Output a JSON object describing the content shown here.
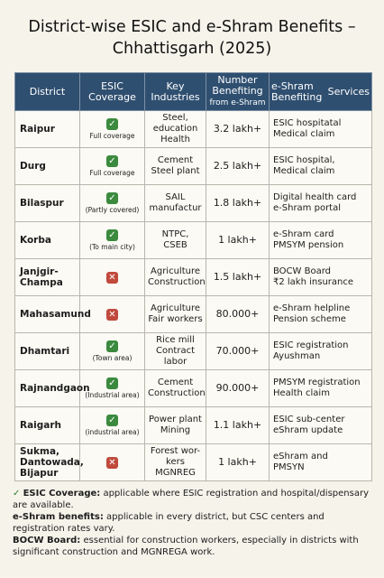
{
  "title_line1": "District-wise ESIC and e-Shram Benefits –",
  "title_line2": "Chhattisgarh (2025)",
  "headers": {
    "district": "District",
    "esic_line1": "ESIC",
    "esic_line2": "Coverage",
    "industries_line1": "Key",
    "industries_line2": "Industries",
    "number_line1": "Number",
    "number_line2": "Benefiting",
    "number_line3": "from e-Shram",
    "services_a_line1": "e-Shram",
    "services_a_line2": "Benefiting",
    "services_b": "Services"
  },
  "rows": [
    {
      "district": "Raipur",
      "esic": "yes",
      "coverage_note": "Full coverage",
      "ind1": "Steel,",
      "ind2": "education",
      "ind3": "Health",
      "number": "3.2 lakh+",
      "svc1": "ESIC hospitatal",
      "svc2": "Medical claim"
    },
    {
      "district": "Durg",
      "esic": "yes",
      "coverage_note": "Full coverage",
      "ind1": "Cement",
      "ind2": "Steel plant",
      "ind3": "",
      "number": "2.5 lakh+",
      "svc1": "ESIC hospital,",
      "svc2": "Medical claim"
    },
    {
      "district": "Bilaspur",
      "esic": "yes",
      "coverage_note": "(Partly covered)",
      "ind1": "SAIL",
      "ind2": "manufactur",
      "ind3": "",
      "number": "1.8 lakh+",
      "svc1": "Digital health card",
      "svc2": "e-Shram portal"
    },
    {
      "district": "Korba",
      "esic": "yes",
      "coverage_note": "(To main city)",
      "ind1": "NTPC,",
      "ind2": "CSEB",
      "ind3": "",
      "number": "1 lakh+",
      "svc1": "e-Shram card",
      "svc2": "PMSYM pension"
    },
    {
      "district": "Janjgir-Champa",
      "esic": "no",
      "coverage_note": "",
      "ind1": "Agriculture",
      "ind2": "Construction",
      "ind3": "",
      "number": "1.5 lakh+",
      "svc1": "BOCW Board",
      "svc2": "₹2 lakh insurance"
    },
    {
      "district": "Mahasamund",
      "esic": "no",
      "coverage_note": "",
      "ind1": "Agriculture",
      "ind2": "Fair workers",
      "ind3": "",
      "number": "80.000+",
      "svc1": "e-Shram helpline",
      "svc2": "Pension scheme"
    },
    {
      "district": "Dhamtari",
      "esic": "yes",
      "coverage_note": "(Town area)",
      "ind1": "Rice mill",
      "ind2": "Contract labor",
      "ind3": "",
      "number": "70.000+",
      "svc1": "ESIC registration",
      "svc2": "Ayushman"
    },
    {
      "district": "Rajnandgaon",
      "esic": "yes",
      "coverage_note": "(Industrial area)",
      "ind1": "Cement",
      "ind2": "Construction",
      "ind3": "",
      "number": "90.000+",
      "svc1": "PMSYM registration",
      "svc2": "Health claim"
    },
    {
      "district": "Raigarh",
      "esic": "yes",
      "coverage_note": "(industrial area)",
      "ind1": "Power plant",
      "ind2": "Mining",
      "ind3": "",
      "number": "1.1 lakh+",
      "svc1": "ESIC sub-center",
      "svc2": "eShram update"
    },
    {
      "district": "Sukma, Dantowada, Bijapur",
      "esic": "no",
      "coverage_note": "",
      "ind1": "Forest wor-",
      "ind2": "kers MGNREG",
      "ind3": "",
      "number": "1 lakh+",
      "svc1": "eShram and",
      "svc2": "PMSYN"
    }
  ],
  "notes": [
    {
      "label": "ESIC Coverage:",
      "text": " applicable where ESIC registration and hospital/dispensary are available."
    },
    {
      "label": "e-Shram benefits:",
      "text": " applicable in every district, but CSC centers and registration rates vary."
    },
    {
      "label": "BOCW Board:",
      "text": " essential for construction workers, especially in districts with significant construction and MGNREGA work."
    }
  ],
  "icons": {
    "yes": "check-icon",
    "no": "cross-icon"
  },
  "colors": {
    "header_bg": "#2f4f70",
    "check_green": "#3b8a3e",
    "cross_red": "#c0493c",
    "page_bg": "#f5f3ea"
  }
}
